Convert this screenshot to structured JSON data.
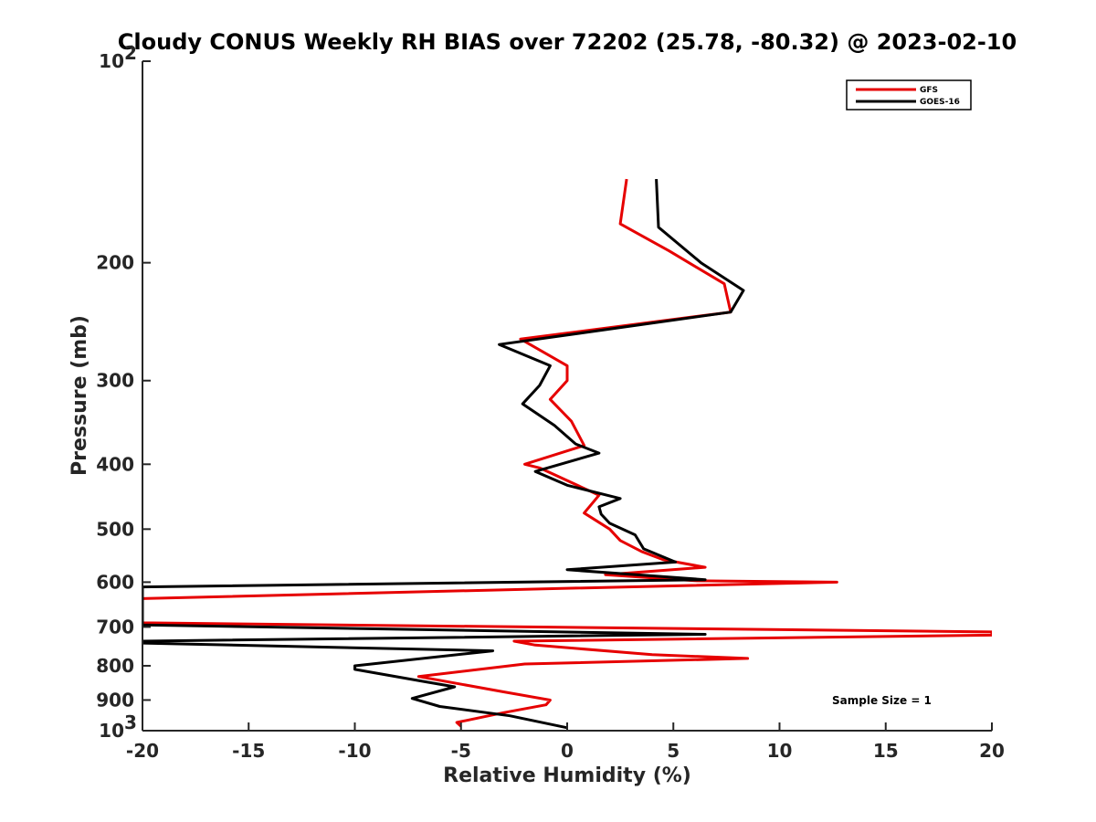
{
  "chart_data": {
    "type": "line",
    "title": "Cloudy CONUS Weekly RH BIAS over 72202 (25.78, -80.32) @ 2023-02-10",
    "xlabel": "Relative Humidity (%)",
    "ylabel": "Pressure (mb)",
    "xlim": [
      -20,
      20
    ],
    "ylim": [
      100,
      1000
    ],
    "y_scale": "log",
    "y_reversed": true,
    "x_ticks": [
      {
        "value": -20,
        "label": "-20"
      },
      {
        "value": -15,
        "label": "-15"
      },
      {
        "value": -10,
        "label": "-10"
      },
      {
        "value": -5,
        "label": "-5"
      },
      {
        "value": 0,
        "label": "0"
      },
      {
        "value": 5,
        "label": "5"
      },
      {
        "value": 10,
        "label": "10"
      },
      {
        "value": 15,
        "label": "15"
      },
      {
        "value": 20,
        "label": "20"
      }
    ],
    "y_ticks": [
      {
        "value": 100,
        "label": "10",
        "sup": "2"
      },
      {
        "value": 200,
        "label": "200",
        "sup": ""
      },
      {
        "value": 300,
        "label": "300",
        "sup": ""
      },
      {
        "value": 400,
        "label": "400",
        "sup": ""
      },
      {
        "value": 500,
        "label": "500",
        "sup": ""
      },
      {
        "value": 600,
        "label": "600",
        "sup": ""
      },
      {
        "value": 700,
        "label": "700",
        "sup": ""
      },
      {
        "value": 800,
        "label": "800",
        "sup": ""
      },
      {
        "value": 900,
        "label": "900",
        "sup": ""
      },
      {
        "value": 1000,
        "label": "10",
        "sup": "3"
      }
    ],
    "grid": false,
    "legend_position": "top-right",
    "annotation": "Sample Size = 1",
    "series": [
      {
        "name": "GFS",
        "color": "#e60000",
        "points": [
          [
            2.8,
            150
          ],
          [
            2.5,
            175
          ],
          [
            4.8,
            192
          ],
          [
            7.4,
            215
          ],
          [
            7.7,
            237
          ],
          [
            -2.2,
            260
          ],
          [
            0,
            285
          ],
          [
            0,
            300
          ],
          [
            -0.8,
            320
          ],
          [
            0.2,
            345
          ],
          [
            0.8,
            375
          ],
          [
            -2,
            400
          ],
          [
            -1.3,
            405
          ],
          [
            1.5,
            445
          ],
          [
            0.8,
            473
          ],
          [
            2,
            500
          ],
          [
            2.5,
            520
          ],
          [
            3.5,
            540
          ],
          [
            4.5,
            555
          ],
          [
            6.5,
            570
          ],
          [
            1.8,
            585
          ],
          [
            6,
            597
          ],
          [
            12.7,
            600
          ],
          [
            -2,
            615
          ],
          [
            -20,
            635
          ],
          [
            -20,
            690
          ],
          [
            20,
            712
          ],
          [
            20,
            720
          ],
          [
            -2.5,
            735
          ],
          [
            -1.5,
            745
          ],
          [
            4,
            770
          ],
          [
            8.5,
            780
          ],
          [
            -2,
            795
          ],
          [
            -7,
            830
          ],
          [
            -3,
            875
          ],
          [
            -0.8,
            900
          ],
          [
            -1,
            915
          ],
          [
            -3,
            940
          ],
          [
            -5.2,
            972
          ],
          [
            -5,
            985
          ]
        ]
      },
      {
        "name": "GOES-16",
        "color": "#000000",
        "points": [
          [
            4.2,
            150
          ],
          [
            4.3,
            177
          ],
          [
            6.3,
            200
          ],
          [
            8.3,
            220
          ],
          [
            7.7,
            237
          ],
          [
            -3.2,
            265
          ],
          [
            -0.8,
            285
          ],
          [
            -1.3,
            305
          ],
          [
            -2.1,
            325
          ],
          [
            -0.6,
            350
          ],
          [
            0.4,
            373
          ],
          [
            1.5,
            385
          ],
          [
            -1.5,
            410
          ],
          [
            0,
            430
          ],
          [
            2.5,
            450
          ],
          [
            1.5,
            463
          ],
          [
            1.6,
            475
          ],
          [
            2,
            490
          ],
          [
            3.2,
            510
          ],
          [
            3.6,
            535
          ],
          [
            5.1,
            560
          ],
          [
            0,
            575
          ],
          [
            6.5,
            595
          ],
          [
            -20,
            610
          ],
          [
            -20,
            695
          ],
          [
            6.5,
            718
          ],
          [
            -20,
            735
          ],
          [
            -20,
            740
          ],
          [
            -3.5,
            760
          ],
          [
            -10,
            800
          ],
          [
            -10,
            810
          ],
          [
            -6.7,
            845
          ],
          [
            -5.3,
            860
          ],
          [
            -7.3,
            895
          ],
          [
            -6,
            920
          ],
          [
            -2.7,
            950
          ],
          [
            0,
            990
          ]
        ]
      }
    ]
  }
}
